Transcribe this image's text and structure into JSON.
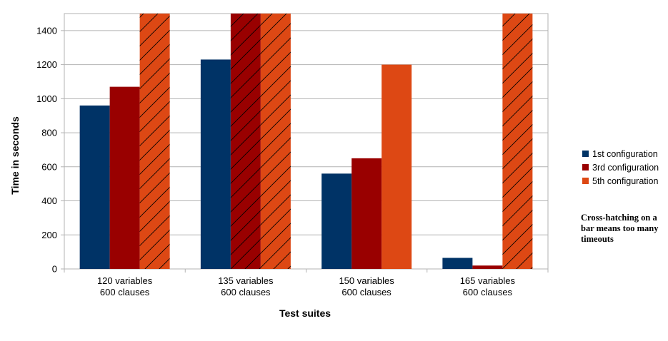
{
  "chart_data": {
    "type": "bar",
    "categories": [
      [
        "120 variables",
        "600 clauses"
      ],
      [
        "135 variables",
        "600 clauses"
      ],
      [
        "150 variables",
        "600 clauses"
      ],
      [
        "165 variables",
        "600 clauses"
      ]
    ],
    "series": [
      {
        "name": "1st configuration",
        "color": "#003366",
        "values": [
          960,
          1230,
          560,
          65
        ],
        "hatched": [
          false,
          false,
          false,
          false
        ]
      },
      {
        "name": "3rd configuration",
        "color": "#990000",
        "values": [
          1070,
          1500,
          650,
          20
        ],
        "hatched": [
          false,
          true,
          false,
          false
        ]
      },
      {
        "name": "5th configuration",
        "color": "#dd4814",
        "values": [
          1500,
          1500,
          1200,
          1500
        ],
        "hatched": [
          true,
          true,
          false,
          true
        ]
      }
    ],
    "xlabel": "Test suites",
    "ylabel": "Time in seconds",
    "ylim": [
      0,
      1500
    ],
    "yticks": [
      0,
      200,
      400,
      600,
      800,
      1000,
      1200,
      1400
    ],
    "grid": true,
    "legend": "right",
    "note": "Cross-hatching on a bar means too many timeouts"
  }
}
